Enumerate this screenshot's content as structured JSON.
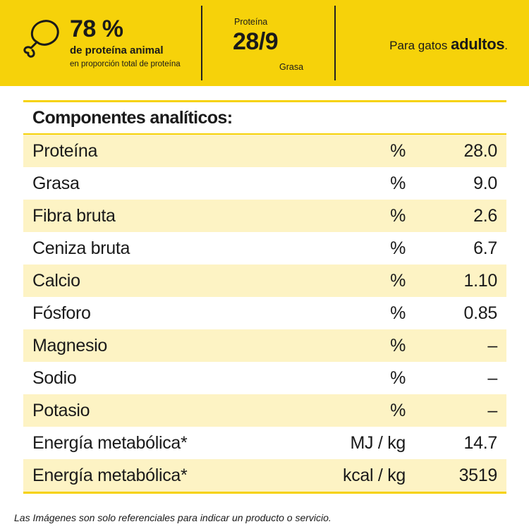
{
  "banner": {
    "icon": "drumstick-icon",
    "protein_percent": "78 %",
    "protein_label": "de proteína animal",
    "protein_sub": "en proporción total de proteína",
    "ratio_top_label": "Proteína",
    "ratio_value": "28/9",
    "ratio_bottom_label": "Grasa",
    "target_prefix": "Para gatos",
    "target_strong": "adultos",
    "target_suffix": ".",
    "background_color": "#f6d20a"
  },
  "table": {
    "title": "Componentes analíticos:",
    "rows": [
      {
        "name": "Proteína",
        "unit": "%",
        "value": "28.0"
      },
      {
        "name": "Grasa",
        "unit": "%",
        "value": "9.0"
      },
      {
        "name": "Fibra bruta",
        "unit": "%",
        "value": "2.6"
      },
      {
        "name": "Ceniza bruta",
        "unit": "%",
        "value": "6.7"
      },
      {
        "name": "Calcio",
        "unit": "%",
        "value": "1.10"
      },
      {
        "name": "Fósforo",
        "unit": "%",
        "value": "0.85"
      },
      {
        "name": "Magnesio",
        "unit": "%",
        "value": "–"
      },
      {
        "name": "Sodio",
        "unit": "%",
        "value": "–"
      },
      {
        "name": "Potasio",
        "unit": "%",
        "value": "–"
      },
      {
        "name": "Energía metabólica*",
        "unit": "MJ / kg",
        "value": "14.7"
      },
      {
        "name": "Energía metabólica*",
        "unit": "kcal / kg",
        "value": "3519"
      }
    ],
    "shade_color": "#fdf3c4"
  },
  "disclaimer": "Las Imágenes son solo referenciales para indicar un producto o servicio."
}
